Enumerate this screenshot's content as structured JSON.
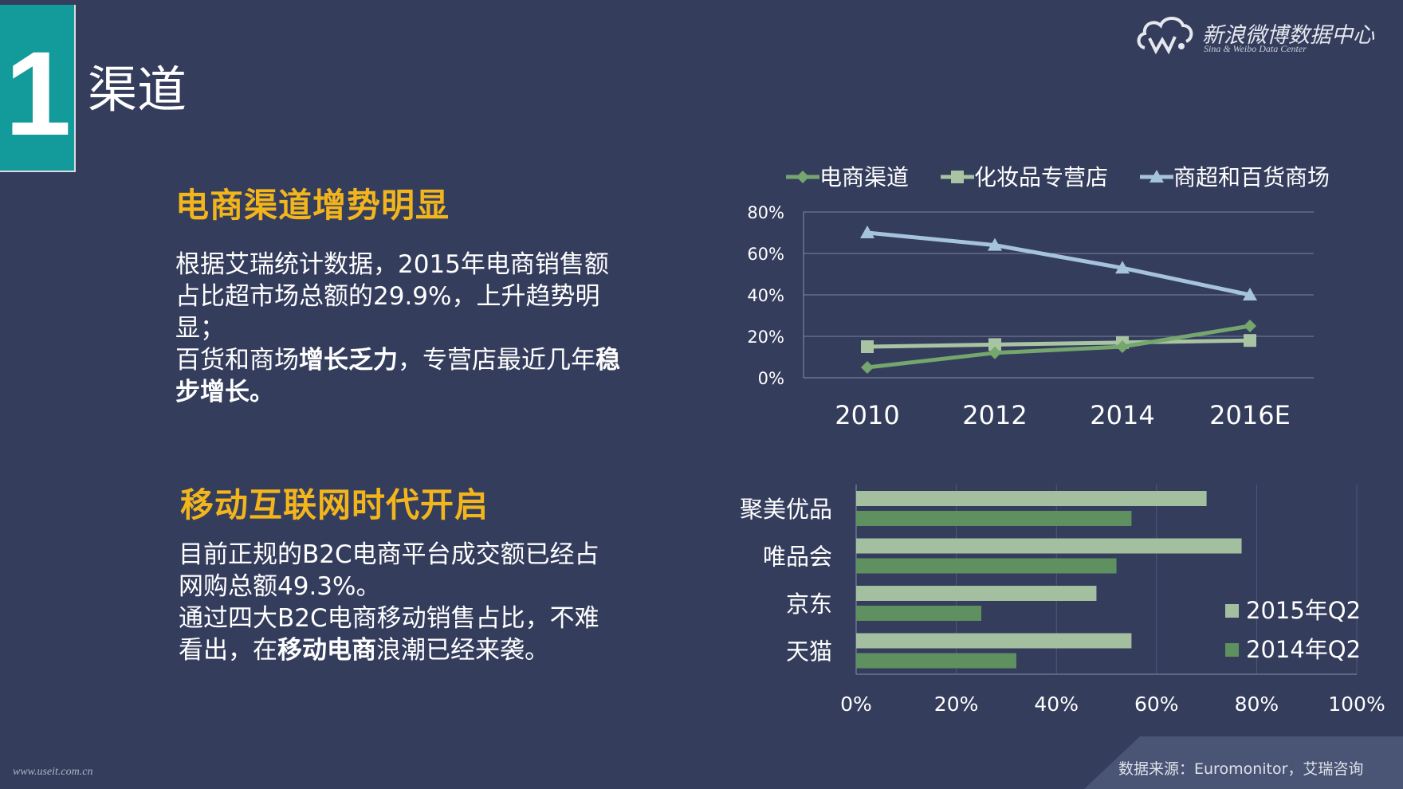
{
  "slide": {
    "number": "1",
    "title": "渠道",
    "logo": {
      "cn": "新浪微博数据中心",
      "en": "Sina & Weibo Data Center"
    },
    "watermark": "www.useit.com.cn",
    "source": "数据来源：Euromonitor，艾瑞咨询"
  },
  "section1": {
    "heading": "电商渠道增势明显",
    "p1": "根据艾瑞统计数据，2015年电商销售额",
    "p2": "占比超市场总额的29.9%，上升趋势明",
    "p3": "显；",
    "p4a": "百货和商场",
    "p4b": "增长乏力",
    "p4c": "，专营店最近几年",
    "p4d": "稳",
    "p5": "步增长。"
  },
  "section2": {
    "heading": "移动互联网时代开启",
    "p1": "目前正规的B2C电商平台成交额已经占",
    "p2": "网购总额49.3%。",
    "p3": "通过四大B2C电商移动销售占比，不难",
    "p4a": "看出，在",
    "p4b": "移动电商",
    "p4c": "浪潮已经来袭。"
  },
  "colors": {
    "background": "#353d5d",
    "accent": "#139a9a",
    "heading": "#f2b51c",
    "series_ecommerce": "#74a66d",
    "series_specialty": "#a8c4a2",
    "series_mall": "#a6c3dc",
    "bar_2015": "#a3bfa0",
    "bar_2014": "#5f9060"
  },
  "chart_data": [
    {
      "type": "line",
      "title": "",
      "categories": [
        "2010",
        "2012",
        "2014",
        "2016E"
      ],
      "series": [
        {
          "name": "电商渠道",
          "marker": "diamond",
          "values": [
            5,
            12,
            15,
            25
          ]
        },
        {
          "name": "化妆品专营店",
          "marker": "square",
          "values": [
            15,
            16,
            17,
            18
          ]
        },
        {
          "name": "商超和百货商场",
          "marker": "triangle",
          "values": [
            70,
            64,
            53,
            40
          ]
        }
      ],
      "ylim": [
        0,
        80
      ],
      "yticks": [
        "0%",
        "20%",
        "40%",
        "60%",
        "80%"
      ],
      "legend": "top",
      "grid": true
    },
    {
      "type": "bar",
      "orientation": "horizontal",
      "categories": [
        "聚美优品",
        "唯品会",
        "京东",
        "天猫"
      ],
      "series": [
        {
          "name": "2015年Q2",
          "values": [
            70,
            77,
            48,
            55
          ]
        },
        {
          "name": "2014年Q2",
          "values": [
            55,
            52,
            25,
            32
          ]
        }
      ],
      "xlim": [
        0,
        100
      ],
      "xticks": [
        "0%",
        "20%",
        "40%",
        "60%",
        "80%",
        "100%"
      ],
      "legend": "right",
      "grid": true
    }
  ]
}
